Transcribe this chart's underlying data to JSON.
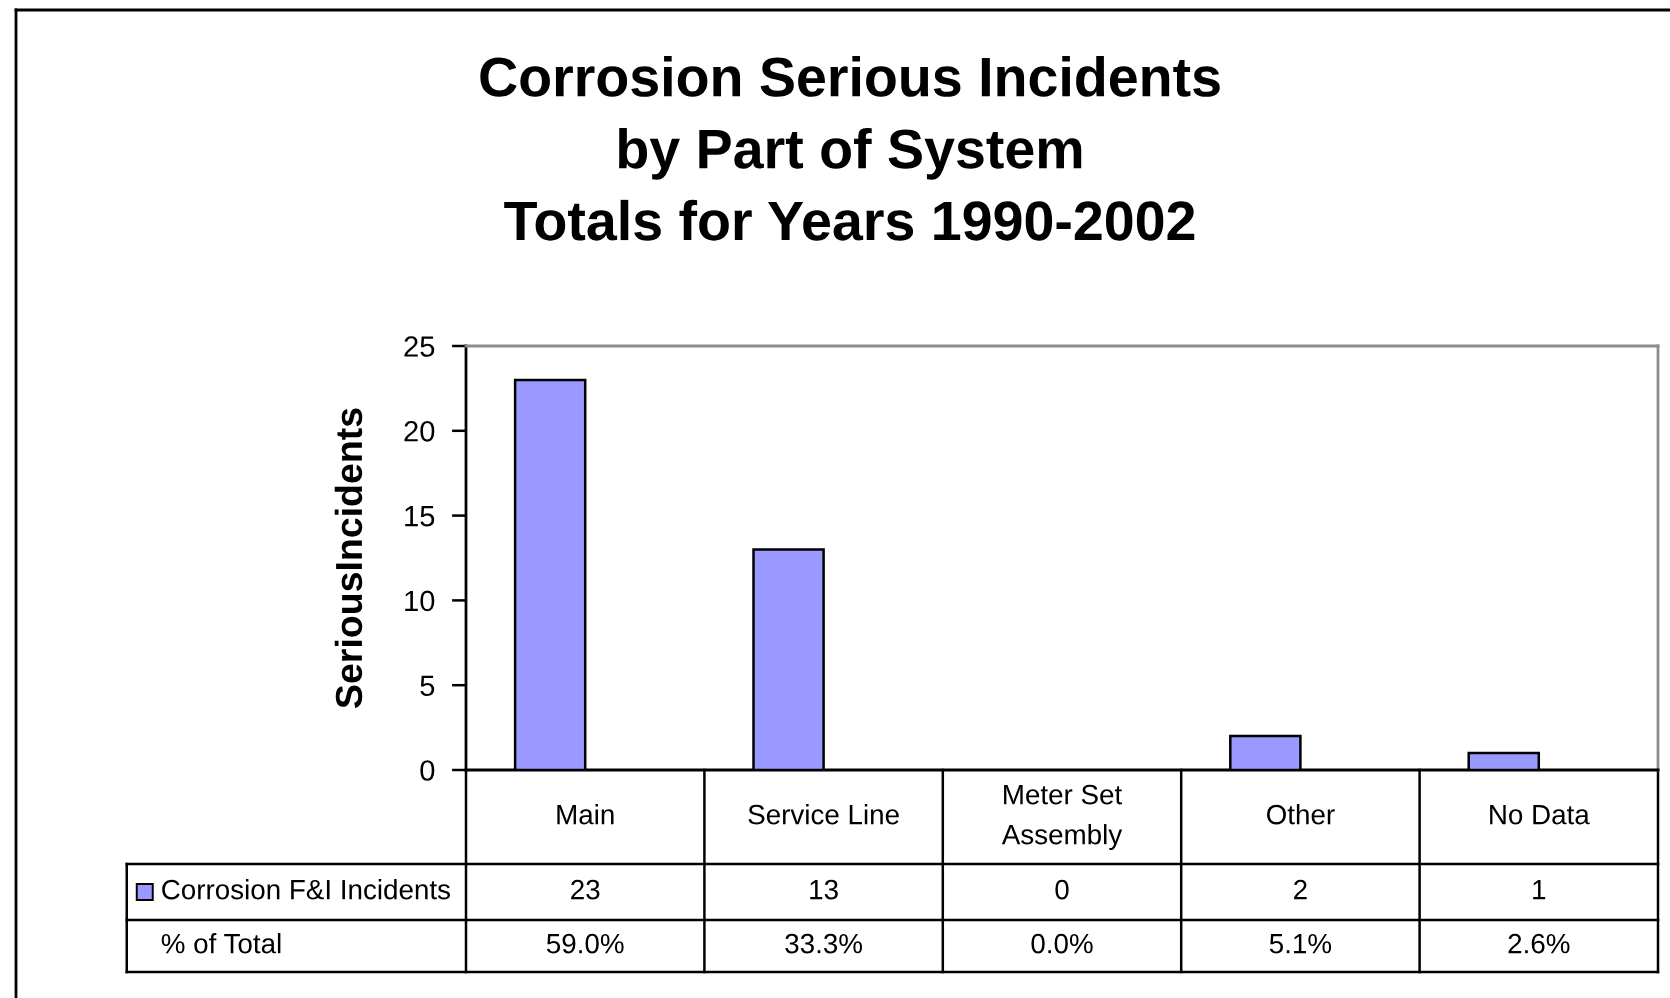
{
  "chart_data": {
    "type": "bar",
    "title": "Corrosion Serious Incidents\nby Part of System\nTotals for Years 1990-2002",
    "ylabel": "SeriousIncidents",
    "categories": [
      "Main",
      "Service Line",
      "Meter Set Assembly",
      "Other",
      "No Data"
    ],
    "series": [
      {
        "name": "Corrosion F&I Incidents",
        "color": "#9999ff",
        "values": [
          23,
          13,
          0,
          2,
          1
        ]
      }
    ],
    "ylim": [
      0,
      25
    ],
    "yticks": [
      0,
      5,
      10,
      15,
      20,
      25
    ],
    "data_labels": true,
    "annotations": [
      "% of Total",
      "59.0%",
      "33.3%",
      "0.0%",
      "5.1%",
      "2.6%"
    ]
  }
}
